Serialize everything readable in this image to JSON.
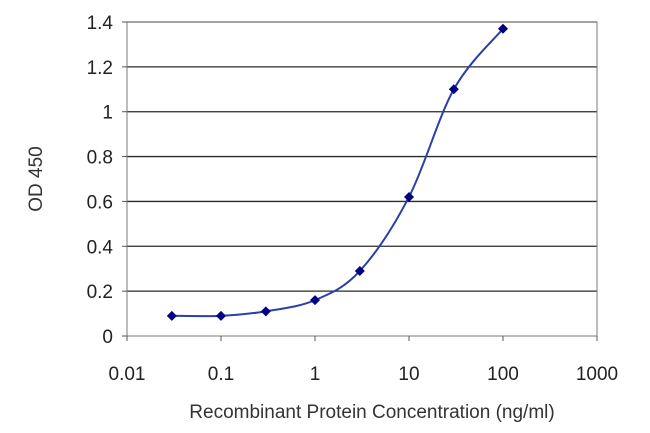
{
  "chart_data": {
    "type": "line",
    "xscale": "log",
    "xlabel": "Recombinant Protein Concentration (ng/ml)",
    "ylabel": "OD 450",
    "xlim": [
      0.01,
      1000
    ],
    "ylim": [
      0,
      1.4
    ],
    "x_ticks": [
      "0.01",
      "0.1",
      "1",
      "10",
      "100",
      "1000"
    ],
    "y_ticks": [
      "0",
      "0.2",
      "0.4",
      "0.6",
      "0.8",
      "1",
      "1.2",
      "1.4"
    ],
    "grid": "horizontal",
    "series": [
      {
        "color": "#000080",
        "x": [
          0.03,
          0.1,
          0.3,
          1,
          3,
          10,
          30,
          100
        ],
        "y": [
          0.09,
          0.09,
          0.11,
          0.16,
          0.29,
          0.62,
          1.1,
          1.37
        ]
      }
    ]
  }
}
